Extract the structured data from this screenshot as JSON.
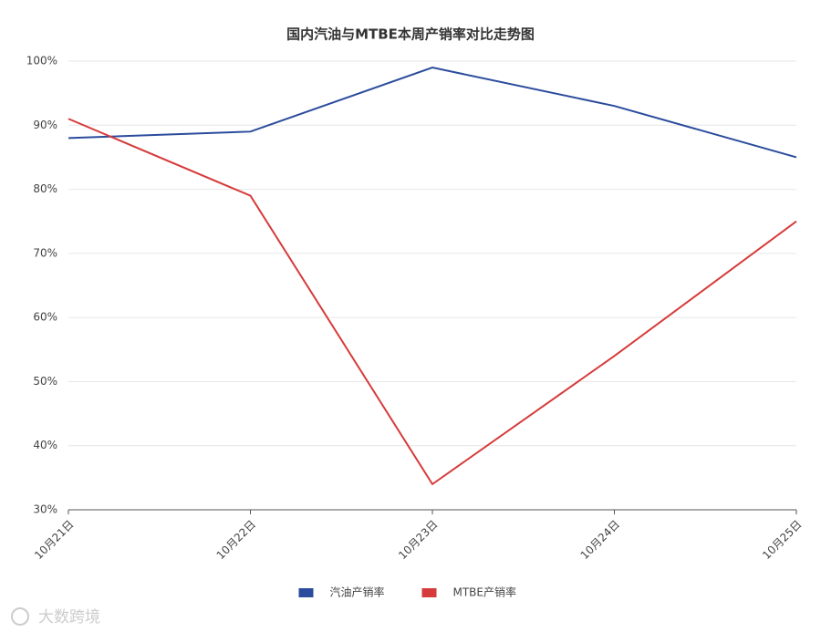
{
  "chart_data": {
    "type": "line",
    "title": "国内汽油与MTBE本周产销率对比走势图",
    "categories": [
      "10月21日",
      "10月22日",
      "10月23日",
      "10月24日",
      "10月25日"
    ],
    "series": [
      {
        "name": "汽油产销率",
        "color": "#2b4c9c",
        "values": [
          88,
          89,
          99,
          93,
          85
        ]
      },
      {
        "name": "MTBE产销率",
        "color": "#d63b3b",
        "values": [
          91,
          79,
          34,
          54,
          75
        ]
      }
    ],
    "ylim": [
      30,
      100
    ],
    "yticks": [
      {
        "value": 30,
        "label": "30%"
      },
      {
        "value": 40,
        "label": "40%"
      },
      {
        "value": 50,
        "label": "50%"
      },
      {
        "value": 60,
        "label": "60%"
      },
      {
        "value": 70,
        "label": "70%"
      },
      {
        "value": 80,
        "label": "80%"
      },
      {
        "value": 90,
        "label": "90%"
      },
      {
        "value": 100,
        "label": "100%"
      }
    ],
    "grid": true,
    "legend": "bottom"
  },
  "watermark": "大数跨境"
}
